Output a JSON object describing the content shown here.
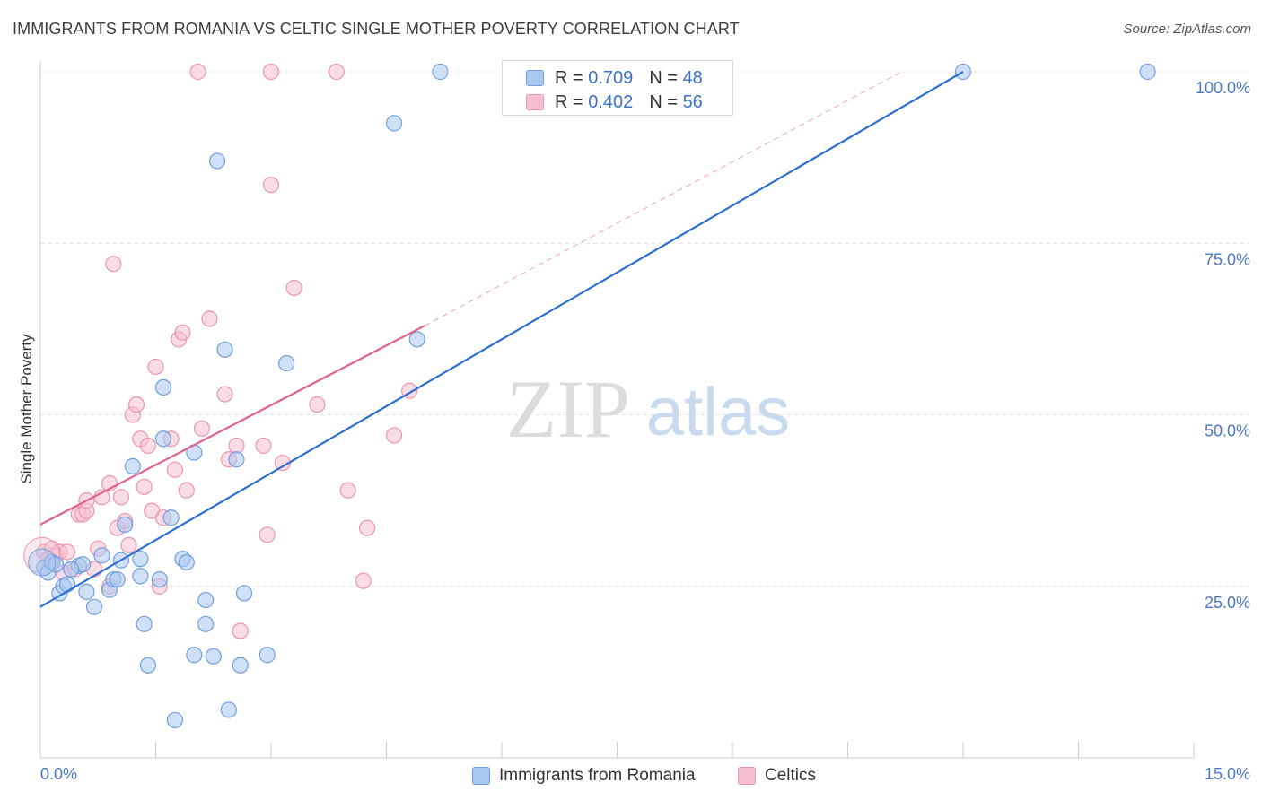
{
  "title": "IMMIGRANTS FROM ROMANIA VS CELTIC SINGLE MOTHER POVERTY CORRELATION CHART",
  "source": "Source: ZipAtlas.com",
  "watermark": {
    "zip": "ZIP",
    "atlas": "atlas"
  },
  "colors": {
    "blue_fill": "#a9c8f0",
    "blue_stroke": "#6f9fe0",
    "blue_line": "#2f6fd0",
    "pink_fill": "#f6bfd0",
    "pink_stroke": "#ec95b0",
    "pink_line": "#e0628e",
    "axis_text": "#4a78c2",
    "grid": "#e2e2e2"
  },
  "legend": {
    "r_label": "R =",
    "n_label": "N =",
    "series": [
      {
        "r": "0.709",
        "n": "48"
      },
      {
        "r": "0.402",
        "n": "56"
      }
    ]
  },
  "bottom_legend": [
    "Immigrants from Romania",
    "Celtics"
  ],
  "chart_data": {
    "type": "scatter",
    "title": "IMMIGRANTS FROM ROMANIA VS CELTIC SINGLE MOTHER POVERTY CORRELATION CHART",
    "xlabel": "",
    "ylabel": "Single Mother Poverty",
    "xlim": [
      0,
      15
    ],
    "ylim": [
      0,
      100
    ],
    "x_tick_labels": [
      "0.0%",
      "15.0%"
    ],
    "y_ticks": [
      25,
      50,
      75,
      100
    ],
    "y_tick_labels": [
      "25.0%",
      "50.0%",
      "75.0%",
      "100.0%"
    ],
    "series": [
      {
        "name": "Immigrants from Romania",
        "r": 0.709,
        "n": 48,
        "trend": {
          "x0": 0,
          "y0": 22,
          "x1": 12.0,
          "y1": 100
        },
        "points": [
          [
            0.05,
            27.7
          ],
          [
            0.1,
            27.0
          ],
          [
            0.15,
            28.5
          ],
          [
            0.2,
            28.2
          ],
          [
            0.25,
            24.0
          ],
          [
            0.3,
            25.0
          ],
          [
            0.35,
            25.3
          ],
          [
            0.5,
            28.0
          ],
          [
            0.55,
            28.2
          ],
          [
            0.6,
            24.2
          ],
          [
            0.7,
            22.0
          ],
          [
            0.8,
            29.5
          ],
          [
            0.9,
            24.5
          ],
          [
            0.95,
            26.0
          ],
          [
            1.0,
            26.0
          ],
          [
            1.05,
            28.8
          ],
          [
            1.1,
            34.0
          ],
          [
            1.2,
            42.5
          ],
          [
            1.3,
            29.0
          ],
          [
            1.3,
            26.5
          ],
          [
            1.35,
            19.5
          ],
          [
            1.4,
            13.5
          ],
          [
            1.55,
            26.0
          ],
          [
            1.6,
            46.5
          ],
          [
            1.6,
            54.0
          ],
          [
            1.7,
            35.0
          ],
          [
            1.75,
            5.5
          ],
          [
            1.85,
            29.0
          ],
          [
            1.9,
            28.5
          ],
          [
            2.0,
            15.0
          ],
          [
            2.0,
            44.5
          ],
          [
            2.15,
            23.0
          ],
          [
            2.15,
            19.5
          ],
          [
            2.25,
            14.8
          ],
          [
            2.3,
            87.0
          ],
          [
            2.4,
            59.5
          ],
          [
            2.45,
            7.0
          ],
          [
            2.55,
            43.5
          ],
          [
            2.6,
            13.5
          ],
          [
            2.65,
            24.0
          ],
          [
            2.95,
            15.0
          ],
          [
            3.2,
            57.5
          ],
          [
            4.6,
            92.5
          ],
          [
            4.9,
            61.0
          ],
          [
            5.2,
            100.0
          ],
          [
            12.0,
            100.0
          ],
          [
            14.4,
            100.0
          ],
          [
            0.4,
            27.5
          ]
        ]
      },
      {
        "name": "Celtics",
        "r": 0.402,
        "n": 56,
        "trend": {
          "x0": 0,
          "y0": 34,
          "x1": 5.0,
          "y1": 63
        },
        "trend_extension": {
          "x0": 5.0,
          "y0": 63,
          "x1": 11.2,
          "y1": 100
        },
        "points": [
          [
            0.05,
            30.0
          ],
          [
            0.1,
            29.0
          ],
          [
            0.15,
            30.5
          ],
          [
            0.2,
            29.5
          ],
          [
            0.25,
            30.0
          ],
          [
            0.3,
            27.0
          ],
          [
            0.35,
            30.0
          ],
          [
            0.45,
            27.5
          ],
          [
            0.5,
            35.5
          ],
          [
            0.55,
            35.5
          ],
          [
            0.6,
            36.0
          ],
          [
            0.6,
            37.5
          ],
          [
            0.7,
            27.5
          ],
          [
            0.75,
            30.5
          ],
          [
            0.8,
            38.0
          ],
          [
            0.9,
            25.0
          ],
          [
            0.9,
            40.0
          ],
          [
            0.95,
            72.0
          ],
          [
            1.0,
            33.5
          ],
          [
            1.05,
            38.0
          ],
          [
            1.1,
            34.5
          ],
          [
            1.15,
            31.0
          ],
          [
            1.2,
            50.0
          ],
          [
            1.25,
            51.5
          ],
          [
            1.3,
            46.5
          ],
          [
            1.35,
            39.5
          ],
          [
            1.4,
            45.5
          ],
          [
            1.45,
            36.0
          ],
          [
            1.5,
            57.0
          ],
          [
            1.55,
            25.0
          ],
          [
            1.6,
            35.0
          ],
          [
            1.7,
            46.5
          ],
          [
            1.75,
            42.0
          ],
          [
            1.8,
            61.0
          ],
          [
            1.85,
            62.0
          ],
          [
            1.9,
            39.0
          ],
          [
            2.05,
            100.0
          ],
          [
            2.1,
            48.0
          ],
          [
            2.2,
            64.0
          ],
          [
            2.4,
            53.0
          ],
          [
            2.45,
            43.5
          ],
          [
            2.55,
            45.5
          ],
          [
            2.6,
            18.5
          ],
          [
            2.9,
            45.5
          ],
          [
            2.95,
            32.5
          ],
          [
            3.0,
            100.0
          ],
          [
            3.0,
            83.5
          ],
          [
            3.15,
            43.0
          ],
          [
            3.3,
            68.5
          ],
          [
            3.6,
            51.5
          ],
          [
            3.85,
            100.0
          ],
          [
            4.0,
            39.0
          ],
          [
            4.2,
            25.8
          ],
          [
            4.25,
            33.5
          ],
          [
            4.6,
            47.0
          ],
          [
            4.8,
            53.5
          ]
        ]
      }
    ]
  }
}
